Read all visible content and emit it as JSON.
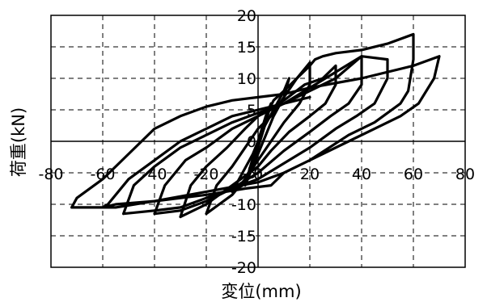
{
  "chart_data": {
    "type": "line",
    "title": "",
    "xlabel": "変位(mm)",
    "ylabel": "荷重(kN)",
    "xlim": [
      -80,
      80
    ],
    "ylim": [
      -20,
      20
    ],
    "xticks": [
      -80,
      -60,
      -40,
      -20,
      0,
      20,
      40,
      60,
      80
    ],
    "yticks": [
      -20,
      -15,
      -10,
      -5,
      0,
      5,
      10,
      15,
      20
    ],
    "x_tick_labels": [
      "-80",
      "-60",
      "-40",
      "-20",
      "0",
      "20",
      "40",
      "60",
      "80"
    ],
    "y_tick_labels": [
      "-20",
      "-15",
      "-10",
      "-5",
      "0",
      "5",
      "10",
      "15",
      "20"
    ],
    "grid": true,
    "grid_style": "dashed",
    "legend": "none",
    "line_color": "#000000",
    "series": [
      {
        "values": [
          [
            0,
            0
          ],
          [
            3,
            4
          ],
          [
            6,
            6.5
          ],
          [
            10,
            8
          ],
          [
            20,
            12
          ],
          [
            22,
            13
          ],
          [
            25,
            13.5
          ],
          [
            30,
            14
          ],
          [
            40,
            14.5
          ],
          [
            50,
            15.5
          ],
          [
            60,
            17
          ],
          [
            60,
            13
          ],
          [
            58,
            8
          ],
          [
            55,
            6
          ],
          [
            45,
            3
          ],
          [
            35,
            1
          ],
          [
            20,
            -3
          ],
          [
            10,
            -5
          ],
          [
            5,
            -7
          ],
          [
            -5,
            -7.5
          ],
          [
            -20,
            -8.5
          ],
          [
            -40,
            -9.5
          ],
          [
            -55,
            -10
          ],
          [
            -60,
            -10.5
          ],
          [
            -72,
            -10.5
          ],
          [
            -70,
            -9
          ],
          [
            -60,
            -6
          ],
          [
            -50,
            -2
          ],
          [
            -40,
            2
          ],
          [
            -30,
            4
          ],
          [
            -20,
            5.5
          ],
          [
            -10,
            6.5
          ],
          [
            0,
            7
          ],
          [
            10,
            7.5
          ],
          [
            20,
            8.5
          ],
          [
            40,
            10
          ],
          [
            60,
            12
          ],
          [
            70,
            13.5
          ],
          [
            68,
            10
          ],
          [
            62,
            6
          ],
          [
            55,
            4
          ],
          [
            45,
            2
          ],
          [
            35,
            0
          ],
          [
            20,
            -3
          ],
          [
            10,
            -5
          ],
          [
            0,
            -6.5
          ],
          [
            -20,
            -8
          ],
          [
            -40,
            -9.5
          ],
          [
            -55,
            -10.5
          ],
          [
            -60,
            -10.5
          ],
          [
            -58,
            -10
          ],
          [
            -50,
            -6
          ],
          [
            -40,
            -3
          ],
          [
            -30,
            0
          ],
          [
            -20,
            2
          ],
          [
            -10,
            4
          ],
          [
            0,
            5
          ],
          [
            10,
            6
          ],
          [
            20,
            7
          ]
        ]
      },
      {
        "values": [
          [
            -52,
            -11.5
          ],
          [
            -48,
            -7
          ],
          [
            -40,
            -4
          ],
          [
            -30,
            -1
          ],
          [
            -20,
            1
          ],
          [
            -10,
            3
          ],
          [
            0,
            4.5
          ],
          [
            10,
            6
          ],
          [
            20,
            8
          ],
          [
            30,
            10
          ],
          [
            40,
            13.5
          ],
          [
            50,
            13
          ],
          [
            50,
            10
          ],
          [
            45,
            6
          ],
          [
            38,
            4
          ],
          [
            30,
            2
          ],
          [
            20,
            -1
          ],
          [
            10,
            -3.5
          ],
          [
            0,
            -6
          ],
          [
            -10,
            -7.5
          ],
          [
            -20,
            -9
          ],
          [
            -30,
            -10.5
          ],
          [
            -40,
            -11
          ],
          [
            -52,
            -11.5
          ]
        ]
      },
      {
        "values": [
          [
            -40,
            -11.5
          ],
          [
            -36,
            -7
          ],
          [
            -28,
            -3
          ],
          [
            -20,
            -1
          ],
          [
            -10,
            2
          ],
          [
            0,
            4
          ],
          [
            10,
            6
          ],
          [
            20,
            8.5
          ],
          [
            30,
            11
          ],
          [
            40,
            13.5
          ],
          [
            40,
            9
          ],
          [
            35,
            6
          ],
          [
            28,
            4
          ],
          [
            20,
            1.5
          ],
          [
            10,
            -1.5
          ],
          [
            0,
            -5
          ],
          [
            -10,
            -7.5
          ],
          [
            -20,
            -9.5
          ],
          [
            -30,
            -11
          ],
          [
            -40,
            -11.5
          ]
        ]
      },
      {
        "values": [
          [
            -30,
            -12
          ],
          [
            -26,
            -7
          ],
          [
            -20,
            -4
          ],
          [
            -12,
            -1
          ],
          [
            -5,
            2
          ],
          [
            0,
            4
          ],
          [
            10,
            6.5
          ],
          [
            18,
            9
          ],
          [
            25,
            10
          ],
          [
            30,
            12
          ],
          [
            30,
            9
          ],
          [
            26,
            6
          ],
          [
            20,
            4
          ],
          [
            12,
            1.5
          ],
          [
            5,
            -1.5
          ],
          [
            0,
            -4
          ],
          [
            -10,
            -7
          ],
          [
            -20,
            -10
          ],
          [
            -30,
            -12
          ]
        ]
      },
      {
        "values": [
          [
            -20,
            -11.5
          ],
          [
            -16,
            -7
          ],
          [
            -10,
            -4
          ],
          [
            -5,
            -1
          ],
          [
            0,
            2
          ],
          [
            5,
            4
          ],
          [
            10,
            7
          ],
          [
            15,
            10
          ],
          [
            20,
            12.5
          ],
          [
            20,
            9
          ],
          [
            16,
            6
          ],
          [
            10,
            3
          ],
          [
            5,
            0
          ],
          [
            0,
            -3
          ],
          [
            -5,
            -6
          ],
          [
            -10,
            -8.5
          ],
          [
            -15,
            -10
          ],
          [
            -20,
            -11.5
          ]
        ]
      },
      {
        "values": [
          [
            -10,
            -8
          ],
          [
            -6,
            -5
          ],
          [
            -2,
            -2
          ],
          [
            2,
            2
          ],
          [
            6,
            5
          ],
          [
            10,
            8
          ],
          [
            12,
            10
          ],
          [
            10,
            7
          ],
          [
            6,
            4
          ],
          [
            2,
            0
          ],
          [
            -2,
            -4
          ],
          [
            -6,
            -7
          ],
          [
            -10,
            -8
          ]
        ]
      },
      {
        "values": [
          [
            -5,
            -7
          ],
          [
            -3,
            -4
          ],
          [
            0,
            0
          ],
          [
            3,
            4
          ],
          [
            5,
            6
          ],
          [
            3,
            3
          ],
          [
            0,
            -1
          ],
          [
            -3,
            -5
          ],
          [
            -5,
            -7
          ]
        ]
      }
    ]
  }
}
